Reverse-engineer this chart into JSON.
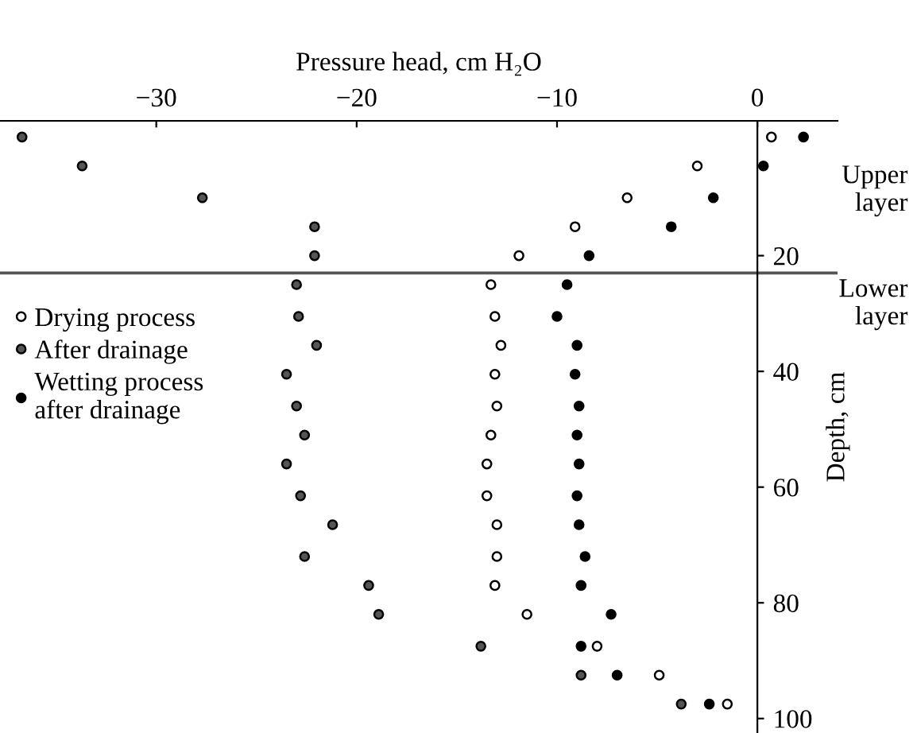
{
  "chart_data": {
    "type": "scatter",
    "xlabel": "Pressure head, cm H₂O",
    "ylabel": "Depth, cm",
    "xlim": [
      -37.8,
      4
    ],
    "ylim": [
      102.5,
      -3.3
    ],
    "xticks": [
      {
        "value": -30,
        "label": "−30"
      },
      {
        "value": -20,
        "label": "−20"
      },
      {
        "value": -10,
        "label": "−10"
      },
      0
    ],
    "yticks": [
      20,
      40,
      60,
      80,
      100
    ],
    "marker": "circle",
    "grid": false,
    "legend": "left",
    "ref_lines": [
      {
        "axis": "y",
        "value": 23,
        "color": "#555555"
      }
    ],
    "annotations": [
      "Upper\nlayer",
      "Lower\nlayer"
    ],
    "series": [
      {
        "name": "Drying process",
        "color": "#ffffff",
        "x": [
          0.7,
          -3.0,
          -6.5,
          -9.1,
          -11.9,
          -13.3,
          -13.1,
          -12.8,
          -13.1,
          -13.0,
          -13.3,
          -13.5,
          -13.5,
          -13.0,
          -13.0,
          -13.1,
          -11.5,
          -8.0,
          -4.9,
          -1.5
        ],
        "values": [
          -0.5,
          4.5,
          10,
          15,
          20,
          25,
          30.5,
          35.5,
          40.5,
          46,
          51,
          56,
          61.5,
          66.5,
          72,
          77,
          82,
          87.5,
          92.5,
          97.5
        ]
      },
      {
        "name": "After drainage",
        "color": "#555555",
        "x": [
          -36.7,
          -33.7,
          -27.7,
          -22.1,
          -22.1,
          -23.0,
          -22.9,
          -22.0,
          -23.5,
          -23.0,
          -22.6,
          -23.5,
          -22.8,
          -21.2,
          -22.6,
          -19.4,
          -18.9,
          -13.8,
          -8.8,
          -3.8
        ],
        "values": [
          -0.5,
          4.5,
          10,
          15,
          20,
          25,
          30.5,
          35.5,
          40.5,
          46,
          51,
          56,
          61.5,
          66.5,
          72,
          77,
          82,
          87.5,
          92.5,
          97.5
        ]
      },
      {
        "name": "Wetting process\nafter drainage",
        "color": "#000000",
        "x": [
          2.3,
          0.3,
          -2.2,
          -4.3,
          -8.4,
          -9.5,
          -10.0,
          -9.0,
          -9.1,
          -8.9,
          -9.0,
          -8.9,
          -9.0,
          -8.9,
          -8.6,
          -8.8,
          -7.3,
          -8.8,
          -7.0,
          -2.4
        ],
        "values": [
          -0.5,
          4.5,
          10,
          15,
          20,
          25,
          30.5,
          35.5,
          40.5,
          46,
          51,
          56,
          61.5,
          66.5,
          72,
          77,
          82,
          87.5,
          92.5,
          97.5
        ]
      }
    ]
  }
}
